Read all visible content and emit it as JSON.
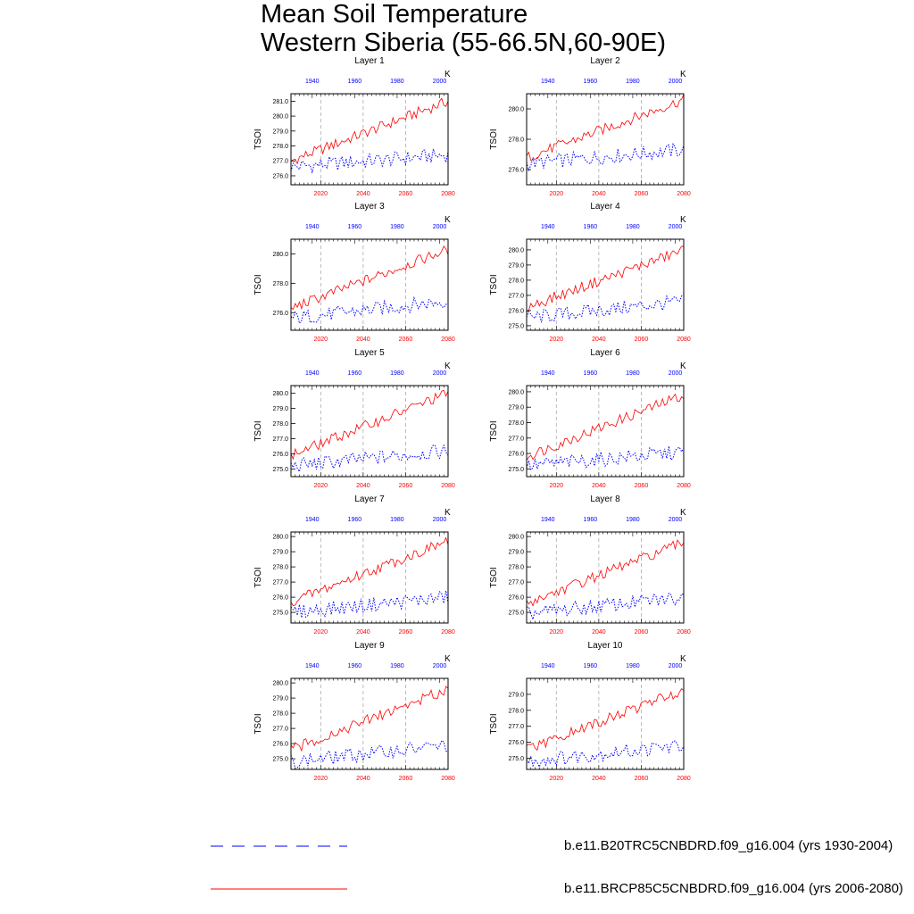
{
  "title_lines": [
    "Mean Soil Temperature",
    "Western Siberia (55-66.5N,60-90E)"
  ],
  "legend": {
    "historical": {
      "label": "b.e11.B20TRC5CNBDRD.f09_g16.004 (yrs 1930-2004)",
      "color": "#0000ff",
      "style": "dashed"
    },
    "future": {
      "label": "b.e11.BRCP85C5CNBDRD.f09_g16.004 (yrs 2006-2080)",
      "color": "#ff0000",
      "style": "solid"
    }
  },
  "chart_data": {
    "type": "line",
    "ylabel": "TSOI",
    "units_label": "K",
    "bottom_axis": {
      "range": [
        2006,
        2080
      ],
      "ticks": [
        2020,
        2040,
        2060,
        2080
      ],
      "color": "#ff0000"
    },
    "top_axis": {
      "range": [
        1930,
        2004
      ],
      "ticks": [
        1940,
        1960,
        1980,
        2000
      ],
      "color": "#0000ff"
    },
    "grid": "dashed vertical lines at 2020, 2040, 2060",
    "panels": [
      {
        "name": "Layer 1",
        "ylim": [
          275.4,
          281.5
        ],
        "yticks": [
          276.0,
          277.0,
          278.0,
          279.0,
          280.0,
          281.0
        ],
        "ytick_labels": [
          "276.0",
          "277.0",
          "278.0",
          "279.0",
          "280.0",
          "281.0"
        ],
        "historical": {
          "start": 276.6,
          "end": 277.4
        },
        "future": {
          "start": 277.0,
          "end": 281.0
        }
      },
      {
        "name": "Layer 2",
        "ylim": [
          275.0,
          281.0
        ],
        "yticks": [
          276.0,
          278.0,
          280.0
        ],
        "ytick_labels": [
          "276.0",
          "278.0",
          "280.0"
        ],
        "historical": {
          "start": 276.4,
          "end": 277.3
        },
        "future": {
          "start": 276.8,
          "end": 280.6
        }
      },
      {
        "name": "Layer 3",
        "ylim": [
          274.8,
          281.0
        ],
        "yticks": [
          276.0,
          278.0,
          280.0
        ],
        "ytick_labels": [
          "276.0",
          "278.0",
          "280.0"
        ],
        "historical": {
          "start": 275.6,
          "end": 276.8
        },
        "future": {
          "start": 276.3,
          "end": 280.3
        }
      },
      {
        "name": "Layer 4",
        "ylim": [
          274.7,
          280.7
        ],
        "yticks": [
          275.0,
          276.0,
          277.0,
          278.0,
          279.0,
          280.0
        ],
        "ytick_labels": [
          "275.0",
          "276.0",
          "277.0",
          "278.0",
          "279.0",
          "280.0"
        ],
        "historical": {
          "start": 275.5,
          "end": 276.6
        },
        "future": {
          "start": 276.2,
          "end": 280.0
        }
      },
      {
        "name": "Layer 5",
        "ylim": [
          274.5,
          280.5
        ],
        "yticks": [
          275.0,
          276.0,
          277.0,
          278.0,
          279.0,
          280.0
        ],
        "ytick_labels": [
          "275.0",
          "276.0",
          "277.0",
          "278.0",
          "279.0",
          "280.0"
        ],
        "historical": {
          "start": 275.2,
          "end": 276.2
        },
        "future": {
          "start": 275.9,
          "end": 280.0
        }
      },
      {
        "name": "Layer 6",
        "ylim": [
          274.5,
          280.4
        ],
        "yticks": [
          275.0,
          276.0,
          277.0,
          278.0,
          279.0,
          280.0
        ],
        "ytick_labels": [
          "275.0",
          "276.0",
          "277.0",
          "278.0",
          "279.0",
          "280.0"
        ],
        "historical": {
          "start": 275.2,
          "end": 276.1
        },
        "future": {
          "start": 275.8,
          "end": 279.8
        }
      },
      {
        "name": "Layer 7",
        "ylim": [
          274.3,
          280.3
        ],
        "yticks": [
          275.0,
          276.0,
          277.0,
          278.0,
          279.0,
          280.0
        ],
        "ytick_labels": [
          "275.0",
          "276.0",
          "277.0",
          "278.0",
          "279.0",
          "280.0"
        ],
        "historical": {
          "start": 275.0,
          "end": 276.0
        },
        "future": {
          "start": 275.7,
          "end": 279.7
        }
      },
      {
        "name": "Layer 8",
        "ylim": [
          274.3,
          280.3
        ],
        "yticks": [
          275.0,
          276.0,
          277.0,
          278.0,
          279.0,
          280.0
        ],
        "ytick_labels": [
          "275.0",
          "276.0",
          "277.0",
          "278.0",
          "279.0",
          "280.0"
        ],
        "historical": {
          "start": 274.9,
          "end": 276.0
        },
        "future": {
          "start": 275.6,
          "end": 279.6
        }
      },
      {
        "name": "Layer 9",
        "ylim": [
          274.3,
          280.3
        ],
        "yticks": [
          275.0,
          276.0,
          277.0,
          278.0,
          279.0,
          280.0
        ],
        "ytick_labels": [
          "275.0",
          "276.0",
          "277.0",
          "278.0",
          "279.0",
          "280.0"
        ],
        "historical": {
          "start": 274.8,
          "end": 275.9
        },
        "future": {
          "start": 275.6,
          "end": 279.6
        }
      },
      {
        "name": "Layer 10",
        "ylim": [
          274.3,
          280.0
        ],
        "yticks": [
          275.0,
          276.0,
          277.0,
          278.0,
          279.0
        ],
        "ytick_labels": [
          "275.0",
          "276.0",
          "277.0",
          "278.0",
          "279.0"
        ],
        "historical": {
          "start": 274.8,
          "end": 275.8
        },
        "future": {
          "start": 275.5,
          "end": 279.3
        }
      }
    ]
  }
}
